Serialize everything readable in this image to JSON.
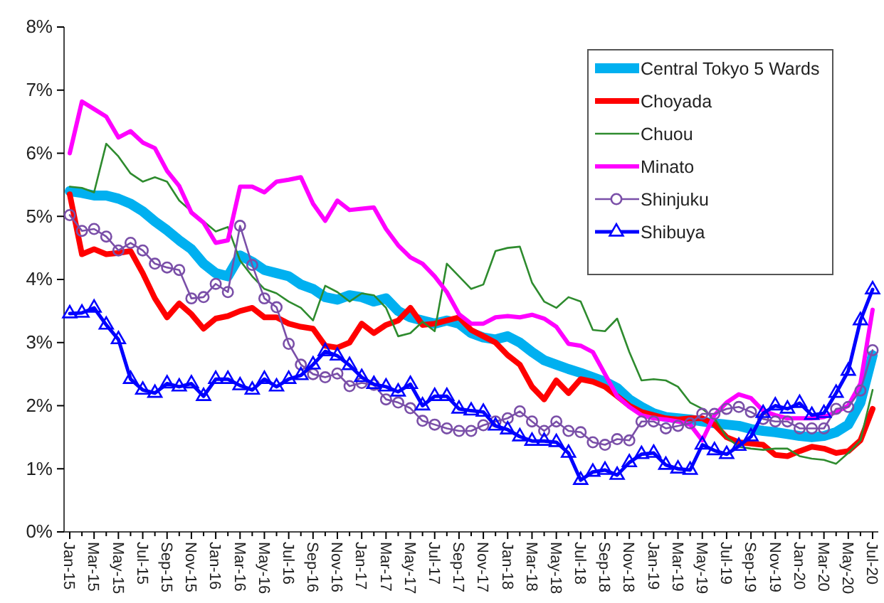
{
  "chart_data": {
    "type": "line",
    "categories": [
      "Jan-15",
      null,
      "Mar-15",
      null,
      "May-15",
      null,
      "Jul-15",
      null,
      "Sep-15",
      null,
      "Nov-15",
      null,
      "Jan-16",
      null,
      "Mar-16",
      null,
      "May-16",
      null,
      "Jul-16",
      null,
      "Sep-16",
      null,
      "Nov-16",
      null,
      "Jan-17",
      null,
      "Mar-17",
      null,
      "May-17",
      null,
      "Jul-17",
      null,
      "Sep-17",
      null,
      "Nov-17",
      null,
      "Jan-18",
      null,
      "Mar-18",
      null,
      "May-18",
      null,
      "Jul-18",
      null,
      "Sep-18",
      null,
      "Nov-18",
      null,
      "Jan-19",
      null,
      "Mar-19",
      null,
      "May-19",
      null,
      "Jul-19",
      null,
      "Sep-19",
      null,
      "Nov-19",
      null,
      "Jan-20",
      null,
      "Mar-20",
      null,
      "May-20",
      null,
      "Jul-20"
    ],
    "ylim": [
      0,
      8
    ],
    "yticks": [
      {
        "value": 0,
        "label": "0%"
      },
      {
        "value": 1,
        "label": "1%"
      },
      {
        "value": 2,
        "label": "2%"
      },
      {
        "value": 3,
        "label": "3%"
      },
      {
        "value": 4,
        "label": "4%"
      },
      {
        "value": 5,
        "label": "5%"
      },
      {
        "value": 6,
        "label": "6%"
      },
      {
        "value": 7,
        "label": "7%"
      },
      {
        "value": 8,
        "label": "8%"
      }
    ],
    "grid": false,
    "legend": "top right",
    "line_style": "solid",
    "series": [
      {
        "name": "Central Tokyo 5 Wards",
        "color": "#00b0f0",
        "marker": "none",
        "values": [
          5.4,
          5.37,
          5.33,
          5.33,
          5.28,
          5.2,
          5.08,
          4.92,
          4.78,
          4.62,
          4.48,
          4.25,
          4.1,
          4.05,
          4.38,
          4.28,
          4.15,
          4.1,
          4.05,
          3.92,
          3.85,
          3.72,
          3.68,
          3.75,
          3.72,
          3.65,
          3.7,
          3.5,
          3.4,
          3.35,
          3.3,
          3.35,
          3.3,
          3.15,
          3.08,
          3.05,
          3.1,
          3.0,
          2.85,
          2.72,
          2.65,
          2.58,
          2.52,
          2.45,
          2.38,
          2.28,
          2.1,
          1.98,
          1.88,
          1.82,
          1.8,
          1.78,
          1.75,
          1.72,
          1.7,
          1.68,
          1.63,
          1.6,
          1.58,
          1.55,
          1.52,
          1.5,
          1.52,
          1.58,
          1.7,
          2.05,
          2.8
        ]
      },
      {
        "name": "Choyada",
        "color": "#ff0000",
        "marker": "none",
        "values": [
          5.35,
          4.4,
          4.48,
          4.4,
          4.42,
          4.45,
          4.1,
          3.7,
          3.4,
          3.62,
          3.45,
          3.22,
          3.38,
          3.42,
          3.5,
          3.55,
          3.4,
          3.4,
          3.3,
          3.25,
          3.22,
          2.95,
          2.92,
          3.0,
          3.3,
          3.15,
          3.28,
          3.35,
          3.55,
          3.28,
          3.3,
          3.35,
          3.4,
          3.2,
          3.1,
          3.0,
          2.8,
          2.65,
          2.3,
          2.1,
          2.4,
          2.2,
          2.42,
          2.38,
          2.3,
          2.15,
          2.0,
          1.9,
          1.85,
          1.8,
          1.78,
          1.8,
          1.8,
          1.7,
          1.5,
          1.42,
          1.4,
          1.38,
          1.22,
          1.2,
          1.28,
          1.35,
          1.32,
          1.25,
          1.28,
          1.45,
          1.95
        ]
      },
      {
        "name": "Chuou",
        "color": "#2e8b2e",
        "marker": "none",
        "values": [
          5.47,
          5.45,
          5.38,
          6.15,
          5.95,
          5.68,
          5.55,
          5.62,
          5.55,
          5.25,
          5.08,
          4.92,
          4.76,
          4.83,
          4.3,
          4.05,
          3.85,
          3.78,
          3.65,
          3.55,
          3.35,
          3.9,
          3.8,
          3.65,
          3.78,
          3.75,
          3.55,
          3.1,
          3.15,
          3.33,
          3.18,
          4.25,
          4.05,
          3.85,
          3.92,
          4.45,
          4.5,
          4.52,
          3.95,
          3.65,
          3.55,
          3.72,
          3.65,
          3.2,
          3.18,
          3.38,
          2.85,
          2.4,
          2.42,
          2.4,
          2.3,
          2.05,
          1.95,
          1.8,
          1.5,
          1.35,
          1.32,
          1.3,
          1.32,
          1.32,
          1.2,
          1.16,
          1.14,
          1.08,
          1.25,
          1.45,
          2.25
        ]
      },
      {
        "name": "Minato",
        "color": "#ff00ff",
        "marker": "none",
        "values": [
          6.0,
          6.82,
          6.7,
          6.58,
          6.25,
          6.35,
          6.17,
          6.08,
          5.72,
          5.48,
          5.06,
          4.9,
          4.58,
          4.62,
          5.47,
          5.47,
          5.38,
          5.55,
          5.58,
          5.62,
          5.2,
          4.93,
          5.25,
          5.1,
          5.12,
          5.14,
          4.8,
          4.54,
          4.35,
          4.25,
          4.05,
          3.8,
          3.45,
          3.3,
          3.3,
          3.4,
          3.42,
          3.4,
          3.44,
          3.38,
          3.25,
          2.98,
          2.95,
          2.85,
          2.5,
          2.15,
          1.98,
          1.85,
          1.8,
          1.78,
          1.75,
          1.7,
          1.45,
          1.85,
          2.05,
          2.18,
          2.12,
          1.92,
          1.85,
          1.8,
          1.8,
          1.8,
          1.82,
          1.9,
          2.0,
          2.35,
          3.52
        ]
      },
      {
        "name": "Shinjuku",
        "color": "#7a4fa8",
        "marker": "circle",
        "values": [
          5.02,
          4.77,
          4.8,
          4.68,
          4.46,
          4.58,
          4.46,
          4.25,
          4.19,
          4.15,
          3.7,
          3.72,
          3.93,
          3.8,
          4.85,
          4.23,
          3.7,
          3.56,
          2.98,
          2.65,
          2.5,
          2.45,
          2.51,
          2.31,
          2.36,
          2.33,
          2.1,
          2.05,
          1.96,
          1.76,
          1.7,
          1.64,
          1.6,
          1.6,
          1.69,
          1.75,
          1.8,
          1.91,
          1.75,
          1.6,
          1.75,
          1.6,
          1.58,
          1.42,
          1.38,
          1.47,
          1.45,
          1.75,
          1.75,
          1.64,
          1.68,
          1.72,
          1.87,
          1.87,
          1.95,
          1.98,
          1.9,
          1.79,
          1.75,
          1.75,
          1.64,
          1.64,
          1.64,
          1.95,
          1.98,
          2.24,
          2.88
        ]
      },
      {
        "name": "Shibuya",
        "color": "#0000ff",
        "marker": "triangle",
        "values": [
          3.46,
          3.47,
          3.55,
          3.28,
          3.05,
          2.42,
          2.25,
          2.2,
          2.35,
          2.3,
          2.35,
          2.15,
          2.42,
          2.42,
          2.32,
          2.25,
          2.42,
          2.3,
          2.42,
          2.48,
          2.65,
          2.86,
          2.79,
          2.64,
          2.45,
          2.34,
          2.3,
          2.22,
          2.34,
          2.0,
          2.15,
          2.15,
          1.95,
          1.92,
          1.9,
          1.68,
          1.62,
          1.51,
          1.44,
          1.44,
          1.42,
          1.25,
          0.82,
          0.95,
          0.98,
          0.9,
          1.1,
          1.23,
          1.25,
          1.06,
          1.0,
          0.98,
          1.38,
          1.29,
          1.23,
          1.36,
          1.51,
          1.88,
          2.0,
          1.95,
          2.04,
          1.85,
          1.88,
          2.2,
          2.55,
          3.35,
          3.84
        ]
      }
    ]
  }
}
